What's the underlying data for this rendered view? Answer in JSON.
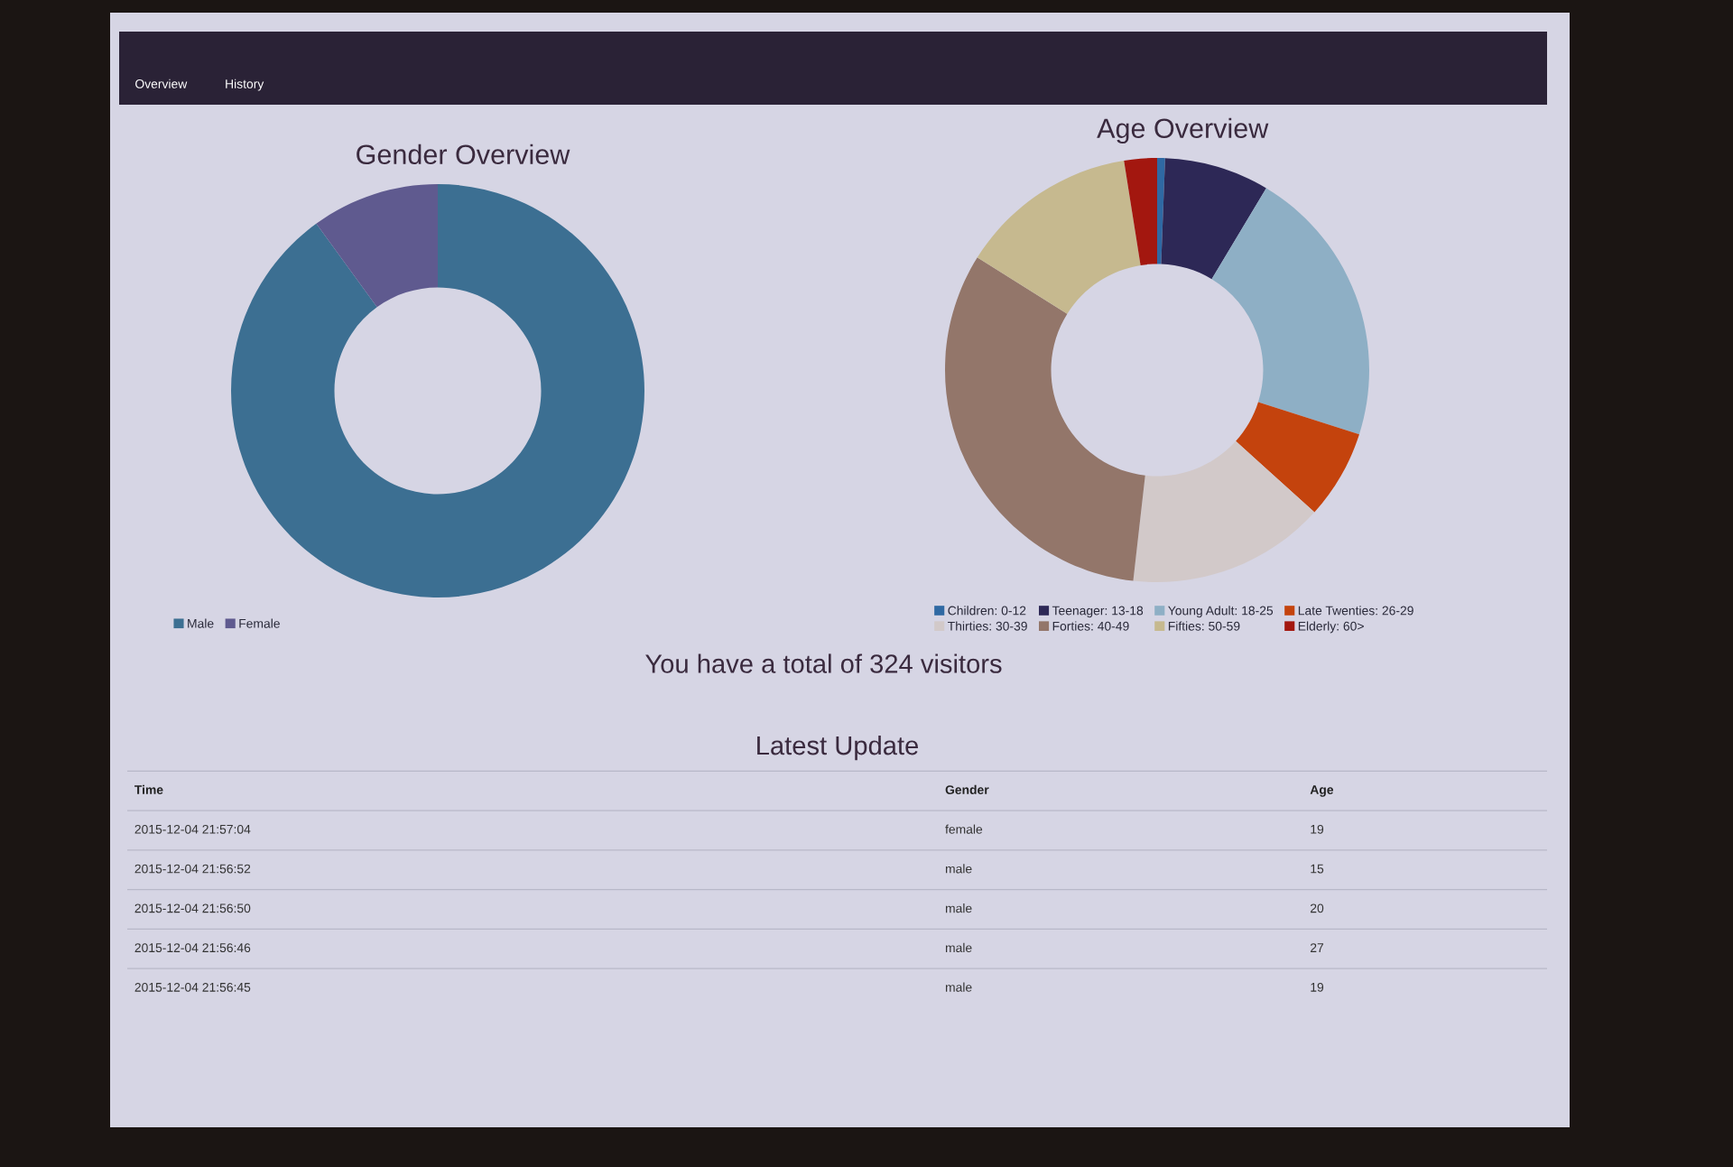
{
  "chart_data": [
    {
      "type": "other",
      "annotations": [
        "Overview",
        "History"
      ]
    },
    {
      "type": "donut",
      "title": "Gender Overview",
      "categories": [
        "Male",
        "Female"
      ],
      "values": [
        90,
        10
      ],
      "colors": [
        "#3c6f92",
        "#5f5a8f"
      ],
      "legend": "bottom left"
    },
    {
      "type": "donut",
      "title": "Age Overview",
      "categories": [
        "Children: 0-12",
        "Teenager: 13-18",
        "Young Adult: 18-25",
        "Late Twenties: 26-29",
        "Thirties: 30-39",
        "Forties: 40-49",
        "Fifties: 50-59",
        "Elderly: 60>"
      ],
      "values": [
        0.6,
        8.0,
        21.3,
        6.8,
        15.1,
        32.1,
        13.6,
        2.5
      ],
      "colors": [
        "#2f69a3",
        "#2d2856",
        "#8eafc5",
        "#c4430d",
        "#d2c9c9",
        "#93766a",
        "#c6b98f",
        "#a3170f"
      ],
      "legend": "bottom"
    },
    {
      "type": "other",
      "title": "You have a total of 324 visitors"
    },
    {
      "type": "other",
      "title": "Latest Update",
      "categories": [
        "Time",
        "Gender",
        "Age"
      ],
      "cell_labels": [
        [
          "2015-12-04 21:57:04",
          "female",
          "19"
        ],
        [
          "2015-12-04 21:56:52",
          "male",
          "15"
        ],
        [
          "2015-12-04 21:56:50",
          "male",
          "20"
        ],
        [
          "2015-12-04 21:56:46",
          "male",
          "27"
        ],
        [
          "2015-12-04 21:56:45",
          "male",
          "19"
        ]
      ]
    }
  ]
}
